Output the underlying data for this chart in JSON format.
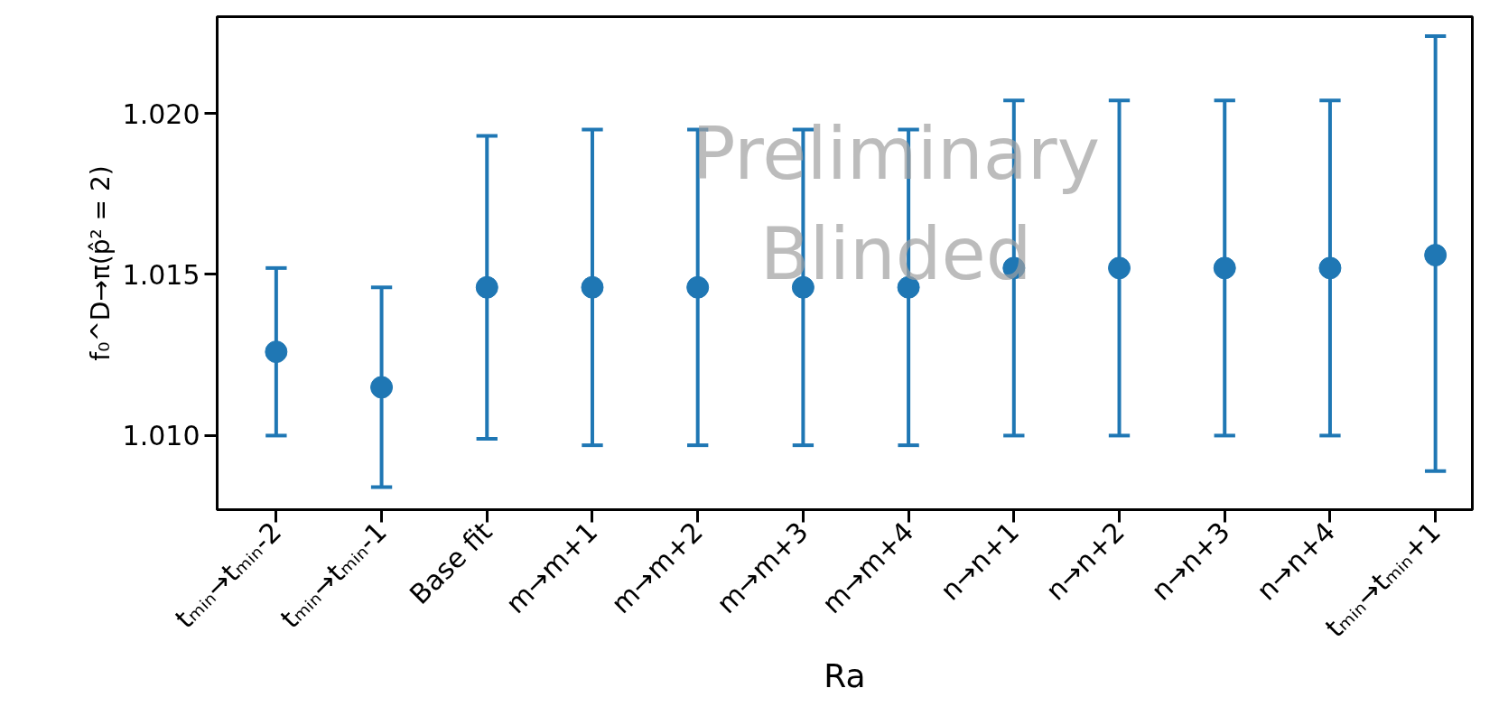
{
  "chart_data": {
    "type": "scatter",
    "ylabel": "f₀^D→π(p̂² = 2)",
    "xlabel": "Ra",
    "categories": [
      "tₘᵢₙ→tₘᵢₙ-2",
      "tₘᵢₙ→tₘᵢₙ-1",
      "Base fit",
      "m→m+1",
      "m→m+2",
      "m→m+3",
      "m→m+4",
      "n→n+1",
      "n→n+2",
      "n→n+3",
      "n→n+4",
      "tₘᵢₙ→tₘᵢₙ+1"
    ],
    "series": [
      {
        "color": "#1f77b4",
        "values": [
          1.0126,
          1.0115,
          1.0146,
          1.0146,
          1.0146,
          1.0146,
          1.0146,
          1.0152,
          1.0152,
          1.0152,
          1.0152,
          1.0156
        ],
        "errors": [
          [
            1.01,
            1.0152
          ],
          [
            1.0084,
            1.0146
          ],
          [
            1.0099,
            1.0193
          ],
          [
            1.0097,
            1.0195
          ],
          [
            1.0097,
            1.0195
          ],
          [
            1.0097,
            1.0195
          ],
          [
            1.0097,
            1.0195
          ],
          [
            1.01,
            1.0204
          ],
          [
            1.01,
            1.0204
          ],
          [
            1.01,
            1.0204
          ],
          [
            1.01,
            1.0204
          ],
          [
            1.0089,
            1.0224
          ]
        ]
      }
    ],
    "ylim": [
      1.0077,
      1.023
    ],
    "yticks": [
      {
        "value": 1.01,
        "label": "1.010"
      },
      {
        "value": 1.015,
        "label": "1.015"
      },
      {
        "value": 1.02,
        "label": "1.020"
      }
    ],
    "marker": "circle",
    "grid": false,
    "annotations": [
      "Preliminary\nBlinded"
    ]
  }
}
